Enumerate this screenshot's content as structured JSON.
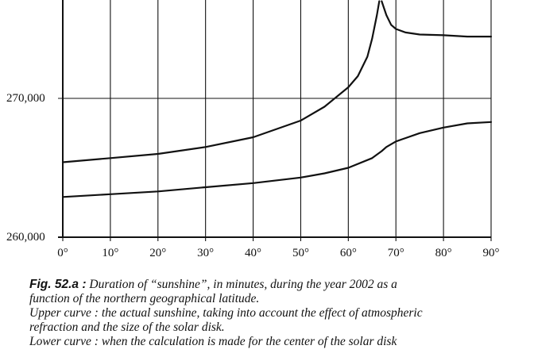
{
  "chart_data": {
    "type": "line",
    "x_ticks": [
      "0°",
      "10°",
      "20°",
      "30°",
      "40°",
      "50°",
      "60°",
      "70°",
      "80°",
      "90°"
    ],
    "y_ticks": [
      {
        "value": 260000,
        "label": "260,000"
      },
      {
        "value": 270000,
        "label": "270,000"
      }
    ],
    "xlim": [
      0,
      90
    ],
    "ylim": [
      260000,
      277000
    ],
    "grid": "vertical lines every 10°, horizontal line at 270,000",
    "series": [
      {
        "x": [
          0,
          10,
          20,
          30,
          40,
          50,
          55,
          60,
          62,
          64,
          65,
          66,
          66.5
        ],
        "y": [
          265400,
          265700,
          266000,
          266500,
          267200,
          268400,
          269400,
          270800,
          271600,
          273000,
          274300,
          276000,
          277000
        ]
      },
      {
        "x": [
          67,
          68,
          69,
          70,
          72,
          75,
          80,
          85,
          90
        ],
        "y": [
          277000,
          276000,
          275300,
          275000,
          274750,
          274600,
          274550,
          274450,
          274450
        ]
      },
      {
        "x": [
          0,
          10,
          20,
          30,
          40,
          50,
          55,
          60,
          65,
          67,
          68,
          70,
          75,
          80,
          85,
          90
        ],
        "y": [
          262900,
          263100,
          263300,
          263600,
          263900,
          264300,
          264600,
          265000,
          265700,
          266200,
          266500,
          266900,
          267500,
          267900,
          268200,
          268300
        ]
      }
    ]
  },
  "caption": {
    "fig_label": "Fig. 52.a :",
    "line1_rest": " Duration of “sunshine”, in minutes, during the year 2002 as a",
    "line2": "function of the northern geographical latitude.",
    "upper_label": "Upper curve :",
    "upper_text": " the actual sunshine, taking into account the effect of atmospheric",
    "upper_text2": "refraction and the size of the solar disk.",
    "lower_label": "Lower curve :",
    "lower_text": " when the calculation is made for the center of the solar disk"
  }
}
